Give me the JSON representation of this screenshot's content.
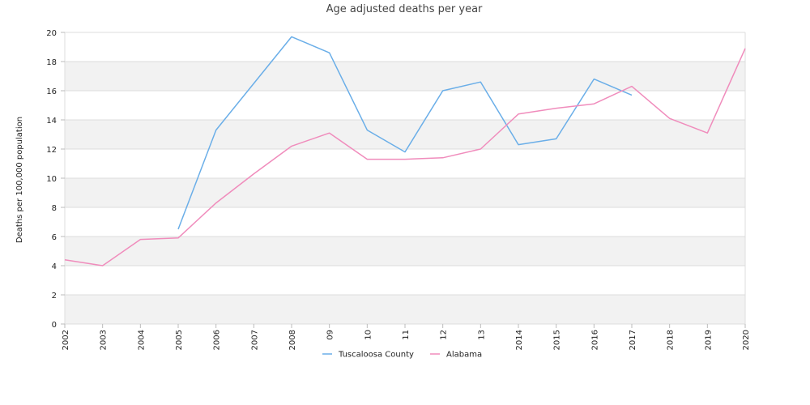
{
  "chart_data": {
    "type": "line",
    "title": "Age adjusted deaths per year",
    "xlabel": "",
    "ylabel": "Deaths per 100,000 population",
    "x": [
      "2002",
      "2003",
      "2004",
      "2005",
      "2006",
      "2007",
      "2008",
      "09",
      "10",
      "11",
      "12",
      "13",
      "2014",
      "2015",
      "2016",
      "2017",
      "2018",
      "2019",
      "2020"
    ],
    "ylim": [
      0,
      20
    ],
    "yticks": [
      0,
      2,
      4,
      6,
      8,
      10,
      12,
      14,
      16,
      18,
      20
    ],
    "grid": true,
    "alternating_bands": true,
    "legend_position": "bottom-center",
    "series": [
      {
        "name": "Tuscaloosa County",
        "color": "#6aaee8",
        "values": [
          null,
          null,
          null,
          6.5,
          13.3,
          16.5,
          19.7,
          18.6,
          13.3,
          11.8,
          16.0,
          16.6,
          12.3,
          12.7,
          16.8,
          15.7,
          null,
          null,
          null
        ]
      },
      {
        "name": "Alabama",
        "color": "#f08cbc",
        "values": [
          4.4,
          4.0,
          5.8,
          5.9,
          8.3,
          10.3,
          12.2,
          13.1,
          11.3,
          11.3,
          11.4,
          12.0,
          14.4,
          14.8,
          15.1,
          16.3,
          14.1,
          13.1,
          18.9
        ]
      }
    ]
  }
}
